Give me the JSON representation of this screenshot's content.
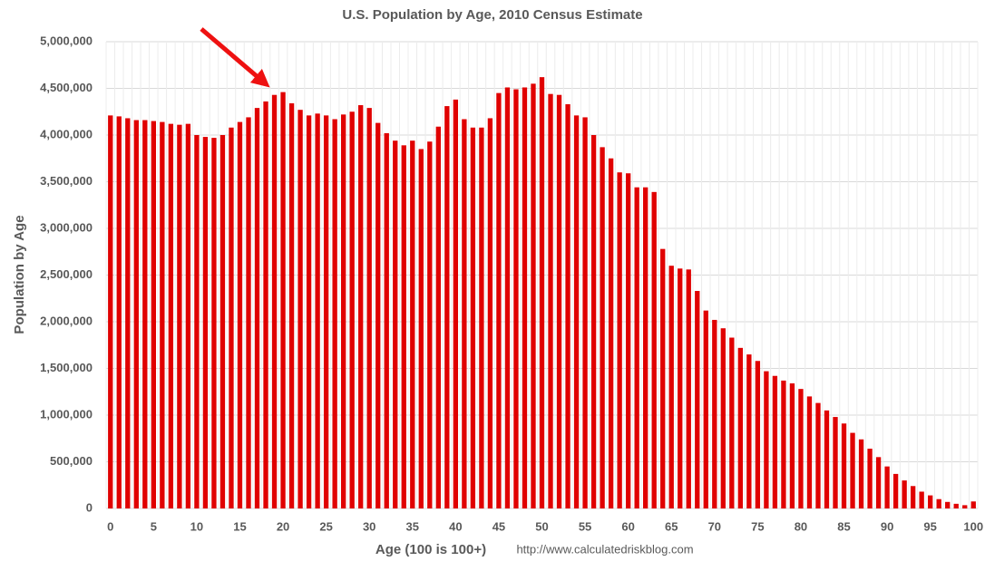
{
  "chart_data": {
    "type": "bar",
    "title": "U.S. Population by Age, 2010 Census Estimate",
    "x_label": "Age (100 is 100+)",
    "y_label": "Population by Age",
    "annotation": "http://www.calculatedriskblog.com",
    "categories": [
      "0",
      null,
      null,
      null,
      null,
      "5",
      null,
      null,
      null,
      null,
      "10",
      null,
      null,
      null,
      null,
      "15",
      null,
      null,
      null,
      null,
      "20",
      null,
      null,
      null,
      null,
      "25",
      null,
      null,
      null,
      null,
      "30",
      null,
      null,
      null,
      null,
      "35",
      null,
      null,
      null,
      null,
      "40",
      null,
      null,
      null,
      null,
      "45",
      null,
      null,
      null,
      null,
      "50",
      null,
      null,
      null,
      null,
      "55",
      null,
      null,
      null,
      null,
      "60",
      null,
      null,
      null,
      null,
      "65",
      null,
      null,
      null,
      null,
      "70",
      null,
      null,
      null,
      null,
      "75",
      null,
      null,
      null,
      null,
      "80",
      null,
      null,
      null,
      null,
      "85",
      null,
      null,
      null,
      null,
      "90",
      null,
      null,
      null,
      null,
      "95",
      null,
      null,
      null,
      null,
      "100"
    ],
    "values": [
      4210000,
      4200000,
      4180000,
      4160000,
      4160000,
      4150000,
      4140000,
      4120000,
      4110000,
      4120000,
      4000000,
      3980000,
      3970000,
      4000000,
      4080000,
      4140000,
      4190000,
      4290000,
      4360000,
      4430000,
      4460000,
      4340000,
      4270000,
      4210000,
      4230000,
      4210000,
      4170000,
      4220000,
      4250000,
      4320000,
      4290000,
      4130000,
      4020000,
      3940000,
      3890000,
      3940000,
      3850000,
      3930000,
      4090000,
      4310000,
      4380000,
      4170000,
      4080000,
      4080000,
      4180000,
      4450000,
      4510000,
      4490000,
      4510000,
      4550000,
      4620000,
      4440000,
      4430000,
      4330000,
      4210000,
      4190000,
      4000000,
      3870000,
      3750000,
      3600000,
      3590000,
      3440000,
      3440000,
      3390000,
      2780000,
      2600000,
      2570000,
      2560000,
      2330000,
      2120000,
      2020000,
      1930000,
      1830000,
      1720000,
      1650000,
      1580000,
      1470000,
      1420000,
      1370000,
      1340000,
      1280000,
      1200000,
      1130000,
      1050000,
      980000,
      910000,
      810000,
      740000,
      640000,
      550000,
      450000,
      370000,
      300000,
      240000,
      180000,
      140000,
      100000,
      70000,
      50000,
      35000,
      75000
    ],
    "color": "#e00000",
    "ylim": [
      0,
      5000000
    ],
    "yticks": [
      0,
      {
        "value": 500000,
        "label": "500,000"
      },
      {
        "value": 1000000,
        "label": "1,000,000"
      },
      {
        "value": 1500000,
        "label": "1,500,000"
      },
      {
        "value": 2000000,
        "label": "2,000,000"
      },
      {
        "value": 2500000,
        "label": "2,500,000"
      },
      {
        "value": 3000000,
        "label": "3,000,000"
      },
      {
        "value": 3500000,
        "label": "3,500,000"
      },
      {
        "value": 4000000,
        "label": "4,000,000"
      },
      {
        "value": 4500000,
        "label": "4,500,000"
      },
      {
        "value": 5000000,
        "label": "5,000,000"
      }
    ],
    "grid": true
  }
}
